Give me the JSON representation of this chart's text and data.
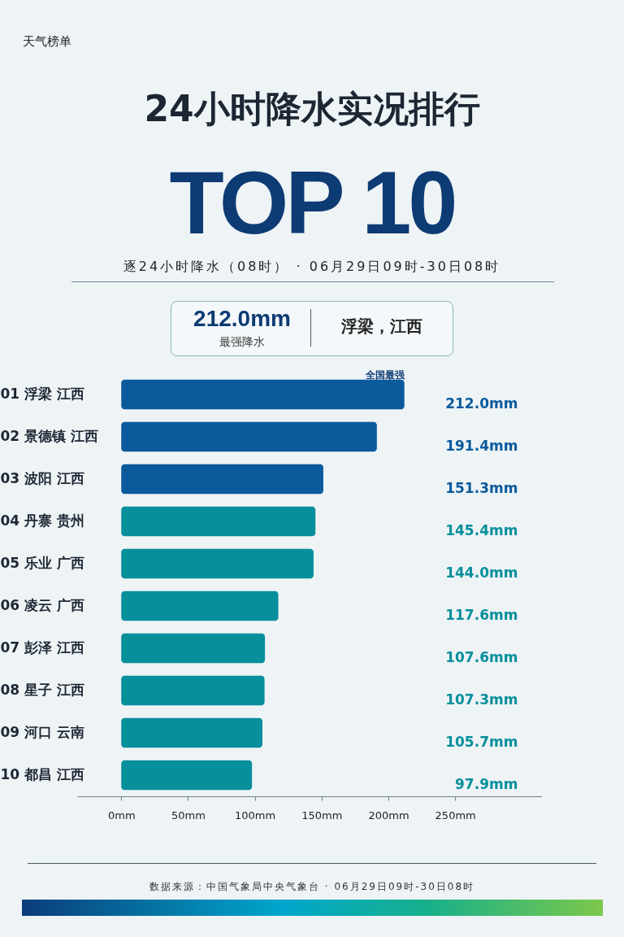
{
  "chart_data": {
    "type": "bar",
    "orientation": "horizontal",
    "title": "24小时降水实况排行",
    "subtitle": "TOP 10",
    "categories": [
      "01  浮梁\n江西",
      "02  景德镇\n江西",
      "03  波阳\n江西",
      "04  丹寨\n贵州",
      "05  乐业\n广西",
      "06  凌云\n广西",
      "07  彭泽\n江西",
      "08  星子\n江西",
      "09  河口\n云南",
      "10  都昌\n江西"
    ],
    "values": [
      212.0,
      191.4,
      151.3,
      145.4,
      144.0,
      117.6,
      107.6,
      107.3,
      105.7,
      97.9
    ],
    "value_labels": [
      "212.0mm",
      "191.4mm",
      "151.3mm",
      "145.4mm",
      "144.0mm",
      "117.6mm",
      "107.6mm",
      "107.3mm",
      "105.7mm",
      "97.9mm"
    ],
    "colors": [
      "#0a5a9c",
      "#0a5a9c",
      "#0a5a9c",
      "#078f9c",
      "#078f9c",
      "#078f9c",
      "#078f9c",
      "#078f9c",
      "#078f9c",
      "#078f9c"
    ],
    "xlim": [
      -33,
      315
    ],
    "xticks": [
      {
        "value": 0,
        "label": "0mm"
      },
      {
        "value": 50,
        "label": "50mm"
      },
      {
        "value": 100,
        "label": "100mm"
      },
      {
        "value": 150,
        "label": "150mm"
      },
      {
        "value": 200,
        "label": "200mm"
      },
      {
        "value": 250,
        "label": "250mm"
      }
    ],
    "annotations": [
      "天气榜单",
      "逐24小时降水（08时） · 06月29日09时-30日08时",
      "212.0mm",
      "最强降水",
      "浮梁，江西",
      {
        "text": "全国最强",
        "x": 212.0,
        "y": "01  浮梁\n江西"
      },
      "数据来源：中国气象局中央气象台 · 06月29日09时-30日08时"
    ]
  }
}
